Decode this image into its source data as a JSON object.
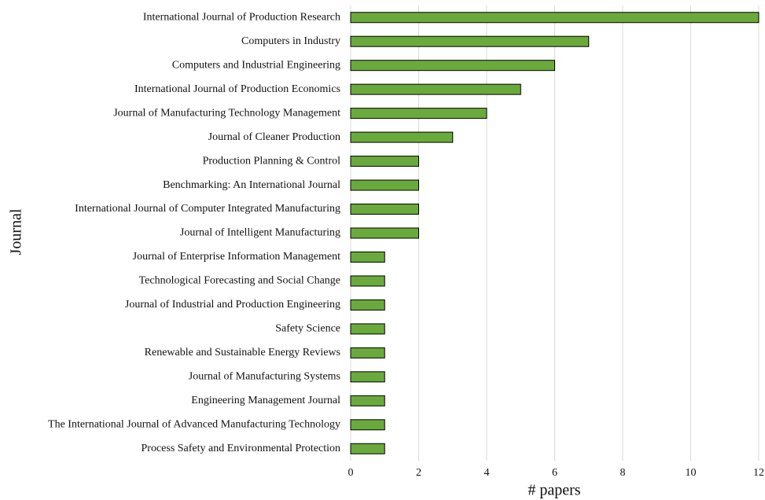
{
  "chart_data": {
    "type": "bar",
    "orientation": "horizontal",
    "x_label": "# papers",
    "y_label": "Journal",
    "categories": [
      "International Journal of Production Research",
      "Computers in Industry",
      "Computers and Industrial Engineering",
      "International Journal of Production Economics",
      "Journal of Manufacturing Technology Management",
      "Journal of Cleaner Production",
      "Production Planning & Control",
      "Benchmarking: An International Journal",
      "International Journal of Computer Integrated Manufacturing",
      "Journal of Intelligent Manufacturing",
      "Journal of Enterprise Information Management",
      "Technological Forecasting and Social Change",
      "Journal of Industrial and Production Engineering",
      "Safety Science",
      "Renewable and Sustainable Energy Reviews",
      "Journal of Manufacturing Systems",
      "Engineering Management Journal",
      "The International Journal of Advanced Manufacturing Technology",
      "Process Safety and Environmental Protection"
    ],
    "values": [
      12,
      7,
      6,
      5,
      4,
      3,
      2,
      2,
      2,
      2,
      1,
      1,
      1,
      1,
      1,
      1,
      1,
      1,
      1
    ],
    "color": "#6aaa3c",
    "xlim": [
      0,
      12
    ],
    "xticks": [
      0,
      2,
      4,
      6,
      8,
      10,
      12
    ],
    "grid": true
  }
}
